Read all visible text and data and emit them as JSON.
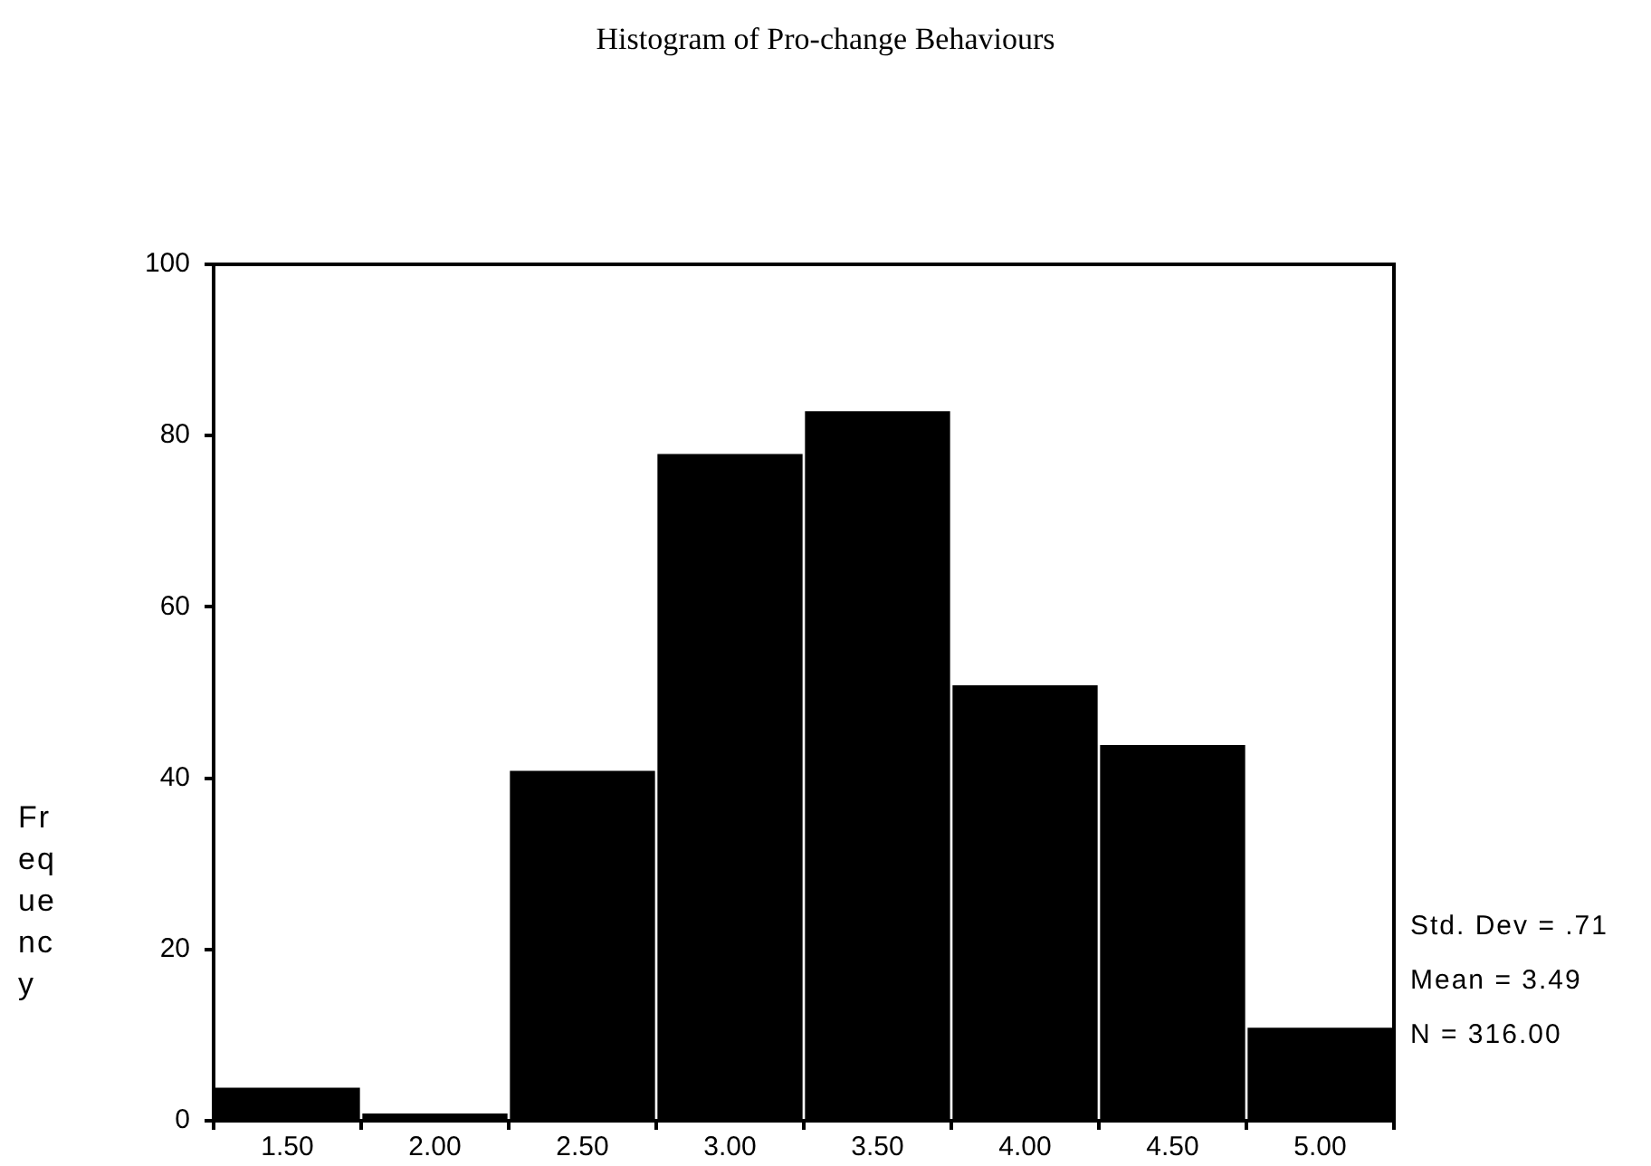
{
  "chart_data": {
    "type": "histogram",
    "title": "Histogram of Pro-change Behaviours",
    "ylabel": "Frequency",
    "bins": [
      1.25,
      1.75,
      2.25,
      2.75,
      3.25,
      3.75,
      4.25,
      4.75,
      5.25
    ],
    "values": [
      4,
      1,
      41,
      78,
      83,
      51,
      44,
      11
    ],
    "color": "#000000",
    "xlim": [
      1.25,
      5.25
    ],
    "xticks": [
      {
        "value": 1.5,
        "label": "1.50"
      },
      {
        "value": 2,
        "label": "2.00"
      },
      {
        "value": 2.5,
        "label": "2.50"
      },
      {
        "value": 3,
        "label": "3.00"
      },
      {
        "value": 3.5,
        "label": "3.50"
      },
      {
        "value": 4,
        "label": "4.00"
      },
      {
        "value": 4.5,
        "label": "4.50"
      },
      {
        "value": 5,
        "label": "5.00"
      }
    ],
    "ylim": [
      0,
      100
    ],
    "yticks": [
      0,
      20,
      40,
      60,
      80,
      100
    ],
    "grid": false,
    "legend": false,
    "annotations": [
      "Std. Dev = .71",
      "Mean = 3.49",
      "N = 316.00"
    ]
  }
}
